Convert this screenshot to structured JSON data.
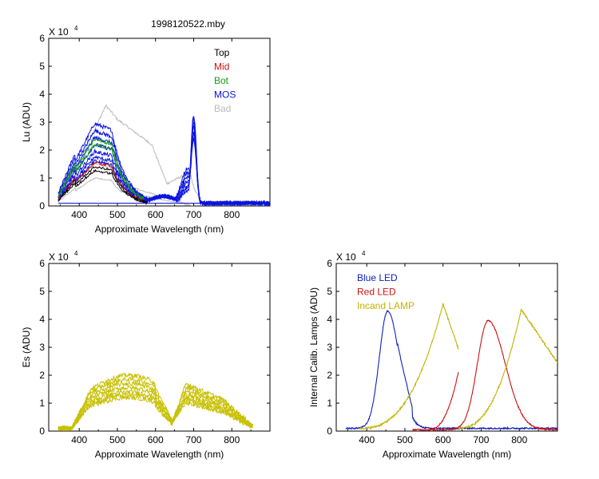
{
  "colors": {
    "top": "#000000",
    "mid": "#cc1111",
    "bot": "#10a010",
    "mos": "#0a14e0",
    "bad": "#bbbbbb",
    "es": "#c8c000",
    "blue_led": "#1020c0",
    "red_led": "#cc1111",
    "incand": "#c0b400"
  },
  "chart_data": [
    {
      "type": "line",
      "title": "1998120522.mby",
      "xlabel": "Approximate Wavelength (nm)",
      "ylabel": "Lu (ADU)",
      "multiplier_label": "X 10",
      "multiplier_exp": "4",
      "xlim": [
        320,
        900
      ],
      "ylim": [
        0,
        6
      ],
      "xticks": [
        "400",
        "500",
        "600",
        "700",
        "800"
      ],
      "yticks": [
        "0",
        "1",
        "2",
        "3",
        "4",
        "5",
        "6"
      ],
      "grid": false,
      "legend_position": "top-right",
      "legend": [
        {
          "name": "Top",
          "color_key": "top"
        },
        {
          "name": "Mid",
          "color_key": "mid"
        },
        {
          "name": "Bot",
          "color_key": "bot"
        },
        {
          "name": "MOS",
          "color_key": "mos"
        },
        {
          "name": "Bad",
          "color_key": "bad"
        }
      ],
      "series": [
        {
          "name": "MOS",
          "color_key": "mos",
          "peak_values": [
            2.95,
            2.7,
            2.45,
            2.2,
            1.95,
            1.75,
            1.6
          ],
          "red_peak_at_700nm": 3.25
        },
        {
          "name": "Bot",
          "color_key": "bot",
          "peak_values": [
            2.4,
            2.2
          ]
        },
        {
          "name": "Mid",
          "color_key": "mid",
          "peak_values": [
            1.55
          ]
        },
        {
          "name": "Top",
          "color_key": "top",
          "peak_values": [
            1.4
          ]
        },
        {
          "name": "Bad",
          "color_key": "bad",
          "peak_values": [
            3.65,
            1.5
          ]
        }
      ]
    },
    {
      "type": "line",
      "xlabel": "Approximate Wavelength (nm)",
      "ylabel": "Es (ADU)",
      "multiplier_label": "X 10",
      "multiplier_exp": "4",
      "xlim": [
        320,
        900
      ],
      "ylim": [
        0,
        6
      ],
      "xticks": [
        "400",
        "500",
        "600",
        "700",
        "800"
      ],
      "yticks": [
        "0",
        "1",
        "2",
        "3",
        "4",
        "5",
        "6"
      ],
      "grid": false,
      "series": [
        {
          "color_key": "es",
          "plateau_values": [
            2.0,
            1.85,
            1.7,
            1.55,
            1.4,
            1.3,
            1.2
          ],
          "second_peak_at_690nm": 1.7
        }
      ]
    },
    {
      "type": "line",
      "xlabel": "Approximate Wavelength (nm)",
      "ylabel": "Internal Calib. Lamps (ADU)",
      "multiplier_label": "X 10",
      "multiplier_exp": "4",
      "xlim": [
        320,
        900
      ],
      "ylim": [
        0,
        6
      ],
      "xticks": [
        "400",
        "500",
        "600",
        "700",
        "800"
      ],
      "yticks": [
        "0",
        "1",
        "2",
        "3",
        "4",
        "5",
        "6"
      ],
      "grid": false,
      "legend_position": "top-left",
      "legend": [
        {
          "name": "Blue LED",
          "color_key": "blue_led"
        },
        {
          "name": "Red LED",
          "color_key": "red_led"
        },
        {
          "name": "Incand LAMP",
          "color_key": "incand"
        }
      ],
      "series": [
        {
          "name": "Blue LED",
          "color_key": "blue_led",
          "peak_x": 455,
          "peak_y": 4.3
        },
        {
          "name": "Red LED",
          "color_key": "red_led",
          "peak_x": 718,
          "peak_y": 3.95
        },
        {
          "name": "Incand LAMP",
          "color_key": "incand",
          "peaks": [
            [
              600,
              4.55
            ],
            [
              805,
              4.35
            ]
          ]
        }
      ]
    }
  ]
}
